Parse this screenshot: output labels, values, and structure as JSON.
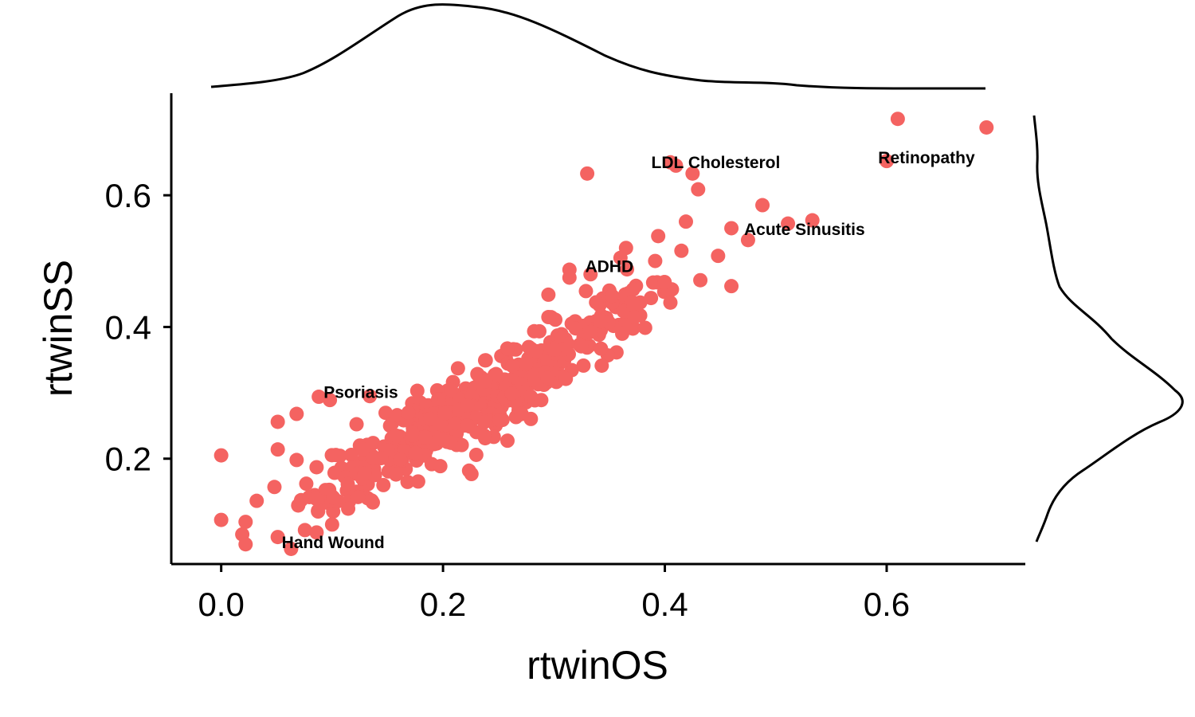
{
  "chart_data": {
    "type": "scatter",
    "title": "",
    "xlabel": "rtwinOS",
    "ylabel": "rtwinSS",
    "xlim": [
      -0.045,
      0.725
    ],
    "ylim": [
      0.04,
      0.755
    ],
    "xticks": [
      0.0,
      0.2,
      0.4,
      0.6
    ],
    "yticks": [
      0.2,
      0.4,
      0.6
    ],
    "xtick_labels": [
      "0.0",
      "0.2",
      "0.4",
      "0.6"
    ],
    "ytick_labels": [
      "0.2",
      "0.4",
      "0.6"
    ],
    "point_color": "#f46361",
    "grid": false,
    "legend": "none",
    "marginal_density": {
      "x": true,
      "y": true
    },
    "annotations": [
      {
        "label": "LDL Cholesterol",
        "x": 0.41,
        "y": 0.645
      },
      {
        "label": "Retinopathy",
        "x": 0.6,
        "y": 0.652
      },
      {
        "label": "Acute Sinusitis",
        "x": 0.49,
        "y": 0.543
      },
      {
        "label": "ADHD",
        "x": 0.314,
        "y": 0.487
      },
      {
        "label": "Psoriasis",
        "x": 0.09,
        "y": 0.296
      },
      {
        "label": "Hand Wound",
        "x": 0.065,
        "y": 0.068
      }
    ],
    "highlight_points": [
      {
        "x": 0.0,
        "y": 0.205
      },
      {
        "x": 0.0,
        "y": 0.107
      },
      {
        "x": 0.022,
        "y": 0.104
      },
      {
        "x": 0.019,
        "y": 0.085
      },
      {
        "x": 0.022,
        "y": 0.07
      },
      {
        "x": 0.063,
        "y": 0.063
      },
      {
        "x": 0.051,
        "y": 0.081
      },
      {
        "x": 0.086,
        "y": 0.088
      },
      {
        "x": 0.1,
        "y": 0.1
      },
      {
        "x": 0.051,
        "y": 0.256
      },
      {
        "x": 0.068,
        "y": 0.268
      },
      {
        "x": 0.051,
        "y": 0.214
      },
      {
        "x": 0.068,
        "y": 0.198
      },
      {
        "x": 0.086,
        "y": 0.187
      },
      {
        "x": 0.032,
        "y": 0.136
      },
      {
        "x": 0.048,
        "y": 0.157
      },
      {
        "x": 0.088,
        "y": 0.294
      },
      {
        "x": 0.098,
        "y": 0.289
      },
      {
        "x": 0.134,
        "y": 0.295
      },
      {
        "x": 0.33,
        "y": 0.633
      },
      {
        "x": 0.405,
        "y": 0.65
      },
      {
        "x": 0.425,
        "y": 0.633
      },
      {
        "x": 0.43,
        "y": 0.609
      },
      {
        "x": 0.41,
        "y": 0.645
      },
      {
        "x": 0.6,
        "y": 0.652
      },
      {
        "x": 0.61,
        "y": 0.716
      },
      {
        "x": 0.69,
        "y": 0.703
      },
      {
        "x": 0.488,
        "y": 0.585
      },
      {
        "x": 0.533,
        "y": 0.562
      },
      {
        "x": 0.511,
        "y": 0.557
      },
      {
        "x": 0.475,
        "y": 0.532
      },
      {
        "x": 0.46,
        "y": 0.55
      },
      {
        "x": 0.419,
        "y": 0.56
      },
      {
        "x": 0.394,
        "y": 0.538
      },
      {
        "x": 0.365,
        "y": 0.52
      },
      {
        "x": 0.314,
        "y": 0.487
      },
      {
        "x": 0.314,
        "y": 0.475
      },
      {
        "x": 0.333,
        "y": 0.48
      },
      {
        "x": 0.46,
        "y": 0.462
      },
      {
        "x": 0.405,
        "y": 0.437
      },
      {
        "x": 0.448,
        "y": 0.508
      },
      {
        "x": 0.432,
        "y": 0.471
      },
      {
        "x": 0.295,
        "y": 0.449
      },
      {
        "x": 0.295,
        "y": 0.415
      },
      {
        "x": 0.36,
        "y": 0.505
      }
    ],
    "cluster_centers": [
      {
        "x": 0.13,
        "y": 0.18
      },
      {
        "x": 0.17,
        "y": 0.24
      },
      {
        "x": 0.22,
        "y": 0.28
      },
      {
        "x": 0.26,
        "y": 0.31
      },
      {
        "x": 0.3,
        "y": 0.36
      },
      {
        "x": 0.34,
        "y": 0.4
      },
      {
        "x": 0.37,
        "y": 0.43
      },
      {
        "x": 0.11,
        "y": 0.15
      },
      {
        "x": 0.25,
        "y": 0.27
      }
    ]
  }
}
